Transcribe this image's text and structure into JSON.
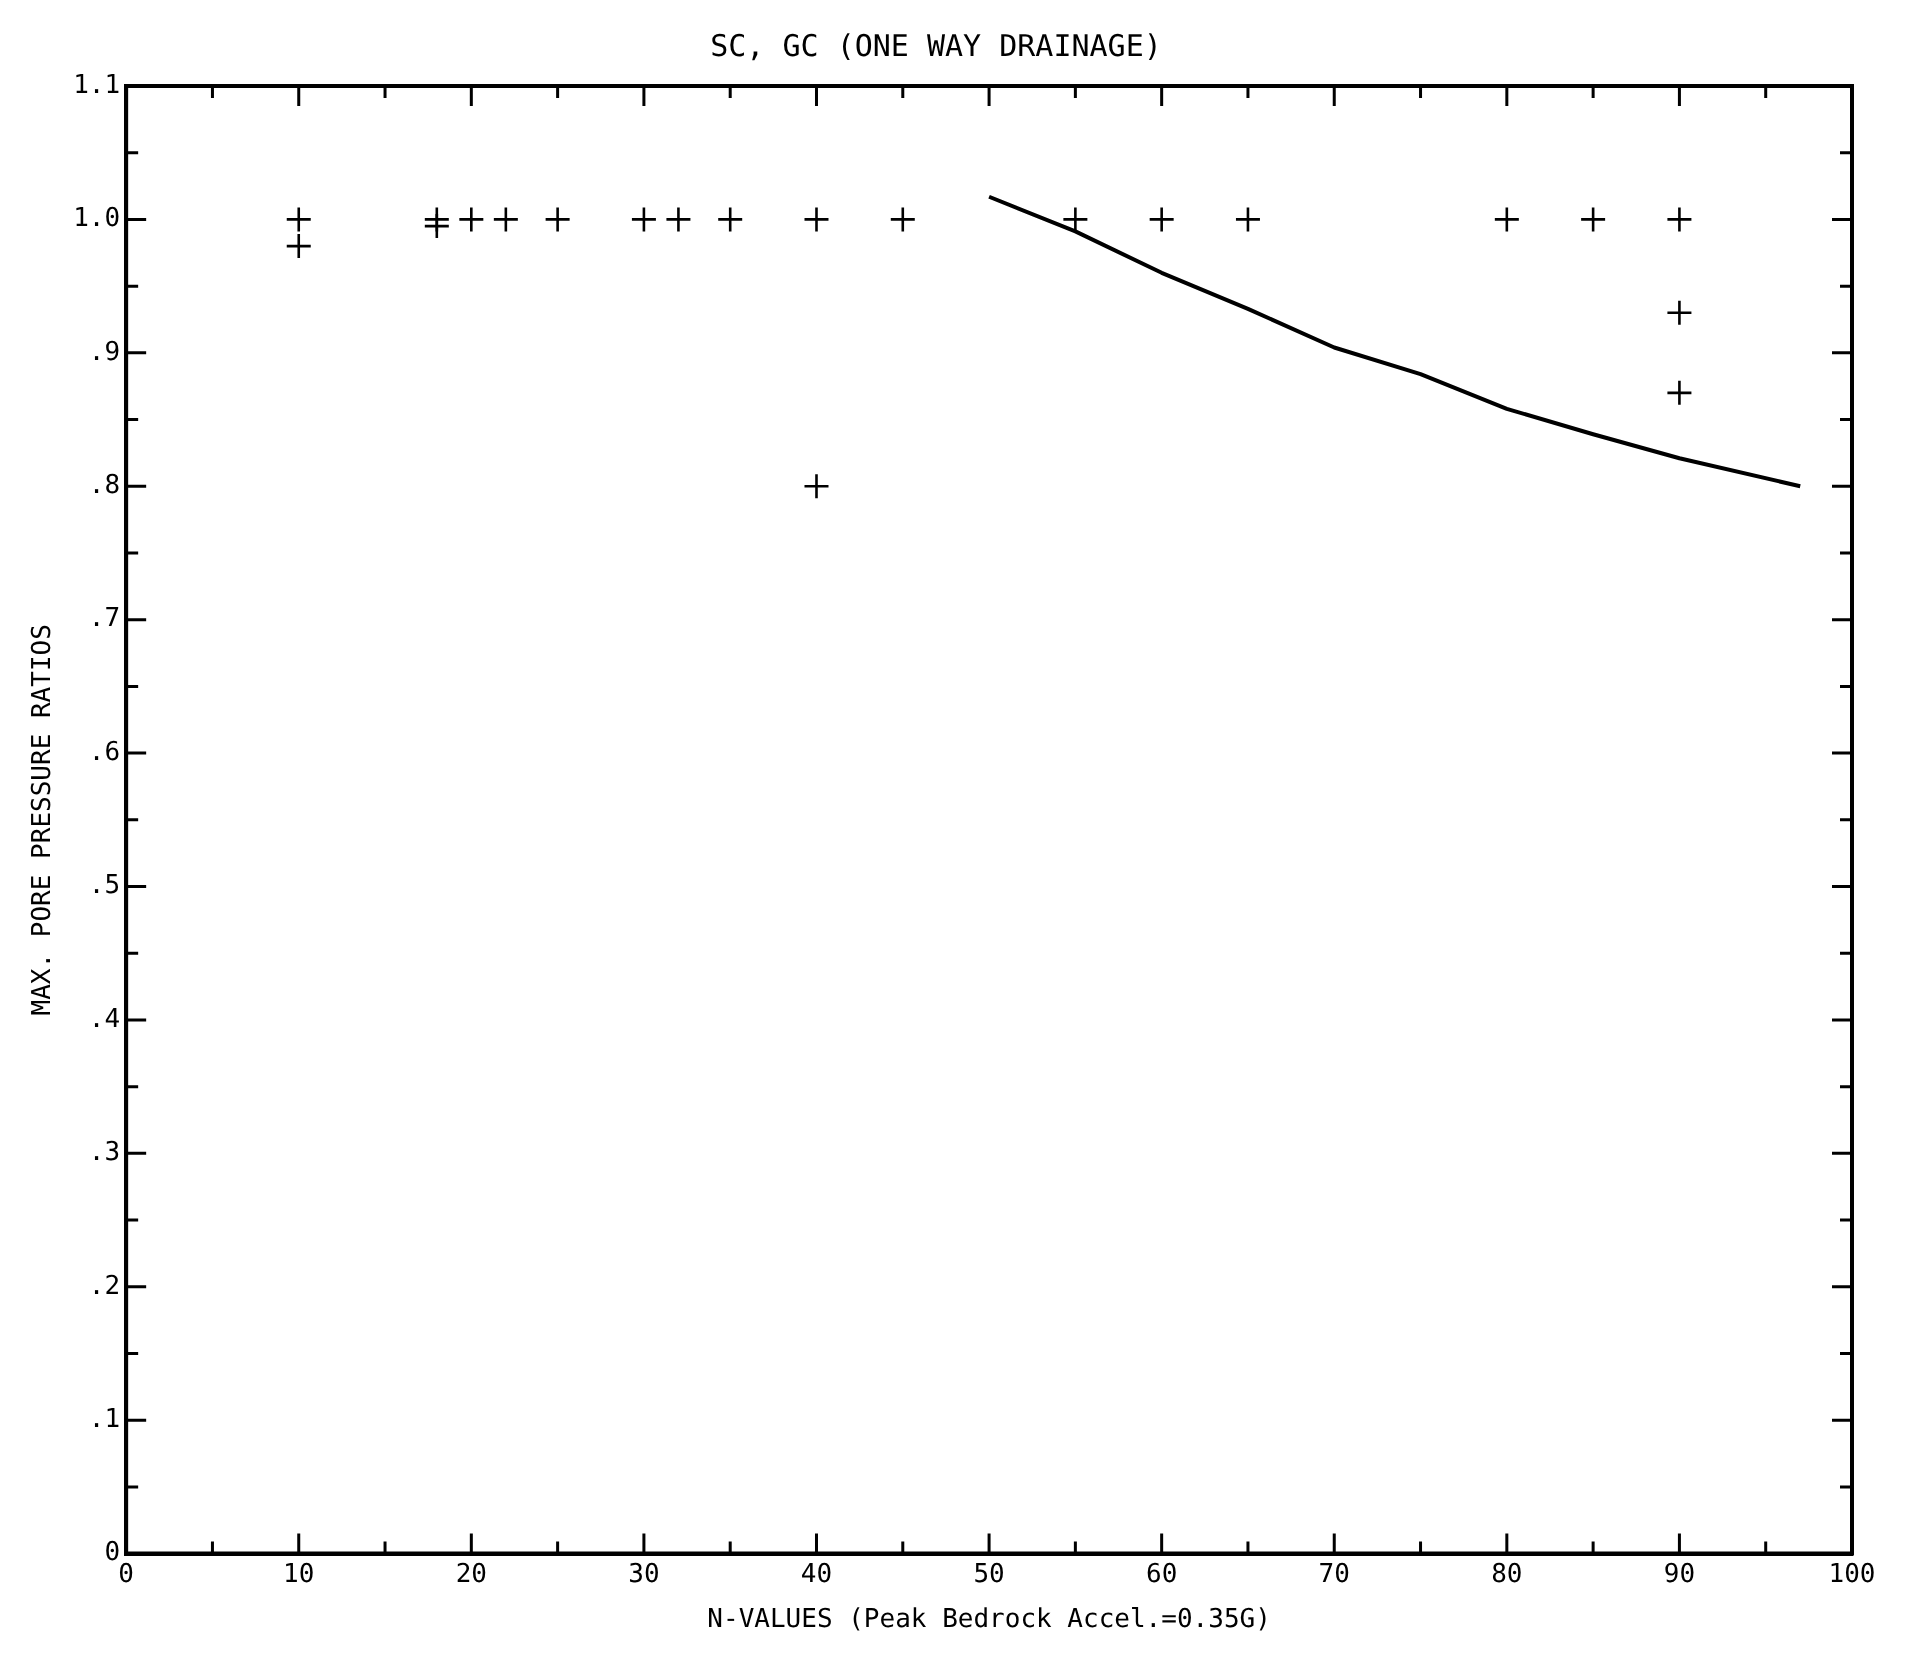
{
  "chart_data": {
    "type": "scatter",
    "title": "SC, GC (ONE WAY DRAINAGE)",
    "xlabel": "N-VALUES (Peak Bedrock Accel.=0.35G)",
    "ylabel": "MAX. PORE PRESSURE RATIOS",
    "xlim": [
      0,
      100
    ],
    "ylim": [
      0,
      1.1
    ],
    "xticks": [
      0,
      {
        "value": 5,
        "label": null
      },
      10,
      {
        "value": 15,
        "label": null
      },
      20,
      {
        "value": 25,
        "label": null
      },
      30,
      {
        "value": 35,
        "label": null
      },
      40,
      {
        "value": 45,
        "label": null
      },
      50,
      {
        "value": 55,
        "label": null
      },
      60,
      {
        "value": 65,
        "label": null
      },
      70,
      {
        "value": 75,
        "label": null
      },
      80,
      {
        "value": 85,
        "label": null
      },
      90,
      {
        "value": 95,
        "label": null
      },
      100
    ],
    "yticks": [
      0,
      {
        "value": 0.05,
        "label": null
      },
      {
        "value": 0.1,
        "label": ".1"
      },
      {
        "value": 0.15,
        "label": null
      },
      {
        "value": 0.2,
        "label": ".2"
      },
      {
        "value": 0.25,
        "label": null
      },
      {
        "value": 0.3,
        "label": ".3"
      },
      {
        "value": 0.35,
        "label": null
      },
      {
        "value": 0.4,
        "label": ".4"
      },
      {
        "value": 0.45,
        "label": null
      },
      {
        "value": 0.5,
        "label": ".5"
      },
      {
        "value": 0.55,
        "label": null
      },
      {
        "value": 0.6,
        "label": ".6"
      },
      {
        "value": 0.65,
        "label": null
      },
      {
        "value": 0.7,
        "label": ".7"
      },
      {
        "value": 0.75,
        "label": null
      },
      {
        "value": 0.8,
        "label": ".8"
      },
      {
        "value": 0.85,
        "label": null
      },
      {
        "value": 0.9,
        "label": ".9"
      },
      {
        "value": 0.95,
        "label": null
      },
      {
        "value": 1.0,
        "label": "1.0"
      },
      {
        "value": 1.05,
        "label": null
      },
      {
        "value": 1.1,
        "label": "1.1"
      }
    ],
    "grid": false,
    "legend": false,
    "marker": "cross",
    "series": [
      {
        "color": "#000000",
        "x": [
          10,
          10,
          18,
          18,
          20,
          22,
          25,
          30,
          32,
          35,
          40,
          40,
          45,
          55,
          60,
          65,
          80,
          85,
          90,
          90,
          90
        ],
        "values": [
          1.0,
          0.98,
          1.0,
          0.995,
          1.0,
          1.0,
          1.0,
          1.0,
          1.0,
          1.0,
          1.0,
          0.8,
          1.0,
          1.0,
          1.0,
          1.0,
          1.0,
          1.0,
          1.0,
          0.93,
          0.87
        ]
      },
      {
        "type": "line",
        "color": "#000000",
        "marker": "none",
        "x": [
          50,
          55,
          60,
          65,
          70,
          75,
          80,
          85,
          90,
          97
        ],
        "values": [
          1.017,
          0.991,
          0.96,
          0.933,
          0.904,
          0.884,
          0.858,
          0.839,
          0.821,
          0.8
        ]
      }
    ]
  }
}
